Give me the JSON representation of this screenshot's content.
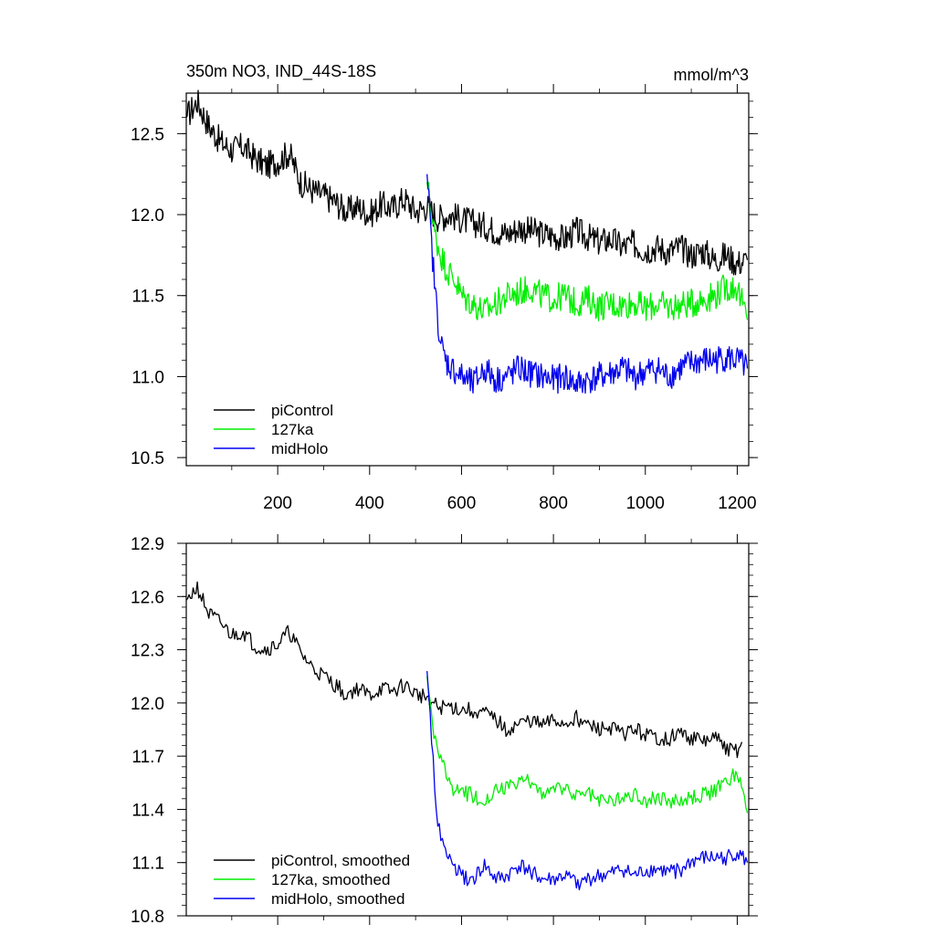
{
  "chart_data": [
    {
      "type": "line",
      "title": "350m NO3, IND_44S-18S",
      "units": "mmol/m^3",
      "xlim": [
        1,
        1225
      ],
      "ylim": [
        10.45,
        12.75
      ],
      "x_ticks": [
        200,
        400,
        600,
        800,
        1000,
        1200
      ],
      "x_tick_labels": [
        "200",
        "400",
        "600",
        "800",
        "1000",
        "1200"
      ],
      "y_ticks": [
        10.5,
        11.0,
        11.5,
        12.0,
        12.5
      ],
      "y_tick_labels": [
        "10.5",
        "11.0",
        "11.5",
        "12.0",
        "12.5"
      ],
      "legend_position": "bottom-left",
      "series": [
        {
          "name": "piControl",
          "color": "#000000",
          "x": [
            1,
            25,
            50,
            75,
            100,
            125,
            150,
            175,
            200,
            225,
            250,
            275,
            300,
            325,
            350,
            375,
            400,
            425,
            450,
            475,
            500,
            525,
            550,
            575,
            600,
            625,
            650,
            675,
            700,
            725,
            750,
            775,
            800,
            825,
            850,
            875,
            900,
            925,
            950,
            975,
            1000,
            1025,
            1050,
            1075,
            1100,
            1125,
            1150,
            1175,
            1200,
            1222
          ],
          "values": [
            12.6,
            12.7,
            12.55,
            12.45,
            12.4,
            12.42,
            12.35,
            12.3,
            12.33,
            12.38,
            12.2,
            12.15,
            12.12,
            12.08,
            12.02,
            12.05,
            12.0,
            12.06,
            12.04,
            12.1,
            12.02,
            12.05,
            11.98,
            12.0,
            11.97,
            11.95,
            11.93,
            11.9,
            11.88,
            11.92,
            11.9,
            11.88,
            11.87,
            11.85,
            11.9,
            11.86,
            11.83,
            11.85,
            11.8,
            11.82,
            11.78,
            11.8,
            11.77,
            11.8,
            11.75,
            11.78,
            11.72,
            11.75,
            11.7,
            11.72
          ]
        },
        {
          "name": "127ka",
          "color": "#00ee00",
          "x": [
            525,
            540,
            555,
            570,
            585,
            600,
            625,
            650,
            675,
            700,
            725,
            750,
            775,
            800,
            825,
            850,
            875,
            900,
            925,
            950,
            975,
            1000,
            1025,
            1050,
            1075,
            1100,
            1125,
            1150,
            1175,
            1200,
            1222
          ],
          "values": [
            12.2,
            11.9,
            11.75,
            11.65,
            11.6,
            11.5,
            11.45,
            11.4,
            11.45,
            11.5,
            11.52,
            11.55,
            11.5,
            11.48,
            11.5,
            11.45,
            11.48,
            11.43,
            11.45,
            11.44,
            11.46,
            11.42,
            11.45,
            11.43,
            11.44,
            11.45,
            11.48,
            11.5,
            11.55,
            11.55,
            11.35
          ]
        },
        {
          "name": "midHolo",
          "color": "#0000ee",
          "x": [
            525,
            535,
            545,
            555,
            565,
            580,
            600,
            625,
            650,
            675,
            700,
            725,
            750,
            775,
            800,
            825,
            850,
            875,
            900,
            925,
            950,
            975,
            1000,
            1025,
            1050,
            1075,
            1100,
            1125,
            1150,
            1175,
            1200,
            1222
          ],
          "values": [
            12.25,
            11.8,
            11.45,
            11.2,
            11.1,
            11.05,
            11.0,
            10.95,
            11.05,
            10.98,
            11.0,
            11.05,
            11.02,
            11.0,
            10.98,
            11.0,
            10.95,
            10.98,
            11.0,
            11.02,
            11.05,
            11.0,
            11.03,
            11.05,
            11.0,
            11.05,
            11.08,
            11.1,
            11.1,
            11.12,
            11.1,
            11.05
          ]
        }
      ]
    },
    {
      "type": "line",
      "xlim": [
        1,
        1225
      ],
      "ylim": [
        10.8,
        12.9
      ],
      "y_ticks": [
        10.8,
        11.1,
        11.4,
        11.7,
        12.0,
        12.3,
        12.6,
        12.9
      ],
      "y_tick_labels": [
        "10.8",
        "11.1",
        "11.4",
        "11.7",
        "12.0",
        "12.3",
        "12.6",
        "12.9"
      ],
      "legend_position": "bottom-left",
      "series": [
        {
          "name": "piControl, smoothed",
          "color": "#000000",
          "x": [
            1,
            25,
            50,
            75,
            100,
            125,
            150,
            175,
            200,
            225,
            250,
            275,
            300,
            325,
            350,
            375,
            400,
            425,
            450,
            475,
            500,
            525,
            550,
            575,
            600,
            625,
            650,
            675,
            700,
            725,
            750,
            775,
            800,
            825,
            850,
            875,
            900,
            925,
            950,
            975,
            1000,
            1025,
            1050,
            1075,
            1100,
            1125,
            1150,
            1175,
            1200,
            1210
          ],
          "values": [
            12.58,
            12.65,
            12.5,
            12.45,
            12.38,
            12.4,
            12.32,
            12.3,
            12.33,
            12.4,
            12.28,
            12.2,
            12.15,
            12.1,
            12.05,
            12.08,
            12.04,
            12.08,
            12.06,
            12.1,
            12.05,
            12.03,
            11.97,
            11.98,
            11.96,
            11.96,
            11.94,
            11.9,
            11.85,
            11.88,
            11.9,
            11.87,
            11.9,
            11.88,
            11.92,
            11.87,
            11.85,
            11.86,
            11.82,
            11.85,
            11.82,
            11.8,
            11.8,
            11.83,
            11.8,
            11.78,
            11.8,
            11.75,
            11.73,
            11.78
          ]
        },
        {
          "name": "127ka, smoothed",
          "color": "#00ee00",
          "x": [
            525,
            540,
            555,
            570,
            585,
            600,
            625,
            650,
            675,
            700,
            725,
            750,
            775,
            800,
            825,
            850,
            875,
            900,
            925,
            950,
            975,
            1000,
            1025,
            1050,
            1075,
            1100,
            1125,
            1150,
            1175,
            1200,
            1222
          ],
          "values": [
            12.15,
            11.8,
            11.7,
            11.55,
            11.5,
            11.5,
            11.48,
            11.45,
            11.5,
            11.52,
            11.55,
            11.56,
            11.5,
            11.5,
            11.52,
            11.48,
            11.5,
            11.45,
            11.46,
            11.47,
            11.48,
            11.45,
            11.46,
            11.45,
            11.44,
            11.46,
            11.48,
            11.5,
            11.55,
            11.62,
            11.38
          ]
        },
        {
          "name": "midHolo, smoothed",
          "color": "#0000ee",
          "x": [
            525,
            535,
            545,
            555,
            565,
            580,
            600,
            625,
            650,
            675,
            700,
            725,
            750,
            775,
            800,
            825,
            850,
            875,
            900,
            925,
            950,
            975,
            1000,
            1025,
            1050,
            1075,
            1100,
            1125,
            1150,
            1175,
            1200,
            1222
          ],
          "values": [
            12.18,
            11.8,
            11.4,
            11.25,
            11.15,
            11.1,
            11.02,
            11.0,
            11.08,
            11.0,
            11.02,
            11.08,
            11.05,
            11.0,
            11.0,
            11.02,
            10.98,
            11.0,
            11.02,
            11.03,
            11.06,
            11.02,
            11.05,
            11.06,
            11.04,
            11.06,
            11.1,
            11.12,
            11.12,
            11.13,
            11.15,
            11.1
          ]
        }
      ]
    }
  ]
}
